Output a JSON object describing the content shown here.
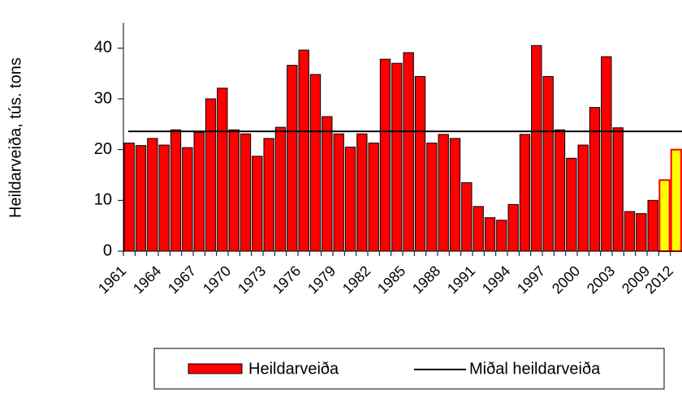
{
  "chart_data": {
    "type": "bar",
    "y_label": "Heildarveiða, tús. tons",
    "categories": [
      "1961",
      null,
      null,
      "1964",
      null,
      null,
      "1967",
      null,
      null,
      "1970",
      null,
      null,
      "1973",
      null,
      null,
      "1976",
      null,
      null,
      "1979",
      null,
      null,
      "1982",
      null,
      null,
      "1985",
      null,
      null,
      "1988",
      null,
      null,
      "1991",
      null,
      null,
      "1994",
      null,
      null,
      "1997",
      null,
      null,
      "2000",
      null,
      null,
      "2003",
      null,
      null,
      "2009",
      null,
      "2012"
    ],
    "series": [
      {
        "name": "Heildarveiða",
        "color": "#ff0000",
        "values": [
          21.3,
          20.8,
          22.2,
          20.9,
          23.9,
          20.4,
          23.4,
          30.0,
          32.1,
          23.9,
          23.1,
          18.7,
          22.2,
          24.4,
          36.6,
          39.6,
          34.8,
          26.5,
          23.1,
          20.5,
          23.1,
          21.3,
          37.8,
          37.0,
          39.1,
          34.4,
          21.3,
          23.0,
          22.2,
          13.5,
          8.8,
          6.6,
          6.1,
          9.2,
          23.0,
          40.5,
          34.4,
          23.9,
          18.3,
          20.9,
          28.3,
          38.3,
          24.3,
          7.8,
          7.4,
          10.0,
          14.0,
          20.0
        ],
        "colors": [
          "#ff0000",
          "#ff0000",
          "#ff0000",
          "#ff0000",
          "#ff0000",
          "#ff0000",
          "#ff0000",
          "#ff0000",
          "#ff0000",
          "#ff0000",
          "#ff0000",
          "#ff0000",
          "#ff0000",
          "#ff0000",
          "#ff0000",
          "#ff0000",
          "#ff0000",
          "#ff0000",
          "#ff0000",
          "#ff0000",
          "#ff0000",
          "#ff0000",
          "#ff0000",
          "#ff0000",
          "#ff0000",
          "#ff0000",
          "#ff0000",
          "#ff0000",
          "#ff0000",
          "#ff0000",
          "#ff0000",
          "#ff0000",
          "#ff0000",
          "#ff0000",
          "#ff0000",
          "#ff0000",
          "#ff0000",
          "#ff0000",
          "#ff0000",
          "#ff0000",
          "#ff0000",
          "#ff0000",
          "#ff0000",
          "#ff0000",
          "#ff0000",
          "#ff0000",
          "#ffff00",
          "#ffff00"
        ],
        "edgecolors": [
          "#000000",
          "#000000",
          "#000000",
          "#000000",
          "#000000",
          "#000000",
          "#000000",
          "#000000",
          "#000000",
          "#000000",
          "#000000",
          "#000000",
          "#000000",
          "#000000",
          "#000000",
          "#000000",
          "#000000",
          "#000000",
          "#000000",
          "#000000",
          "#000000",
          "#000000",
          "#000000",
          "#000000",
          "#000000",
          "#000000",
          "#000000",
          "#000000",
          "#000000",
          "#000000",
          "#000000",
          "#000000",
          "#000000",
          "#000000",
          "#000000",
          "#000000",
          "#000000",
          "#000000",
          "#000000",
          "#000000",
          "#000000",
          "#000000",
          "#000000",
          "#000000",
          "#000000",
          "#000000",
          "#ff0000",
          "#ff0000"
        ]
      }
    ],
    "reference_line": {
      "name": "Miðal heildarveiða",
      "value": 23.6,
      "color": "#000000"
    },
    "ylim": [
      0,
      45
    ],
    "yticks": [
      0,
      10,
      20,
      30,
      40
    ],
    "grid": false,
    "legend": "bottom"
  }
}
